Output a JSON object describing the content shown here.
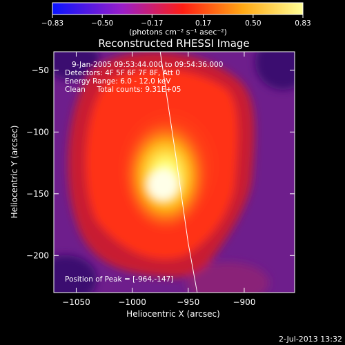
{
  "chart_data": {
    "type": "heatmap",
    "title": "Reconstructed RHESSI Image",
    "xlabel": "Heliocentric X (arcsec)",
    "ylabel": "Heliocentric Y (arcsec)",
    "xlim": [
      -1070,
      -855
    ],
    "ylim": [
      -230,
      -35
    ],
    "x_ticks": [
      -1050,
      -1000,
      -950,
      -900
    ],
    "x_tick_labels": [
      "−1050",
      "−1000",
      "−950",
      "−900"
    ],
    "y_ticks": [
      -50,
      -100,
      -150,
      -200
    ],
    "y_tick_labels": [
      "−50",
      "−100",
      "−150",
      "−200"
    ],
    "colorbar": {
      "range": [
        -0.83,
        0.83
      ],
      "ticks": [
        -0.83,
        -0.5,
        -0.17,
        0.17,
        0.5,
        0.83
      ],
      "tick_labels": [
        "−0.83",
        "−0.50",
        "−0.17",
        "0.17",
        "0.50",
        "0.83"
      ],
      "label": "(photons cm⁻² s⁻¹ asec⁻²)",
      "colors": [
        "#0a14ff",
        "#9a1ec8",
        "#ff1e14",
        "#ffa814",
        "#ffff96"
      ]
    },
    "annotations": [
      "9-Jan-2005 09:53:44.000 to 09:54:36.000",
      "Detectors: 4F 5F 6F 7F 8F, Att 0",
      "Energy Range: 6.0 - 12.0 keV",
      "Clean     Total counts: 9.31E+05",
      "Position of Peak = [-964,-147]"
    ],
    "peak": {
      "x": -964,
      "y": -147
    },
    "limb_line": [
      [
        -975,
        -35
      ],
      [
        -961,
        -120
      ],
      [
        -950,
        -190
      ],
      [
        -942,
        -230
      ]
    ],
    "timestamp": "2-Jul-2013 13:32"
  }
}
